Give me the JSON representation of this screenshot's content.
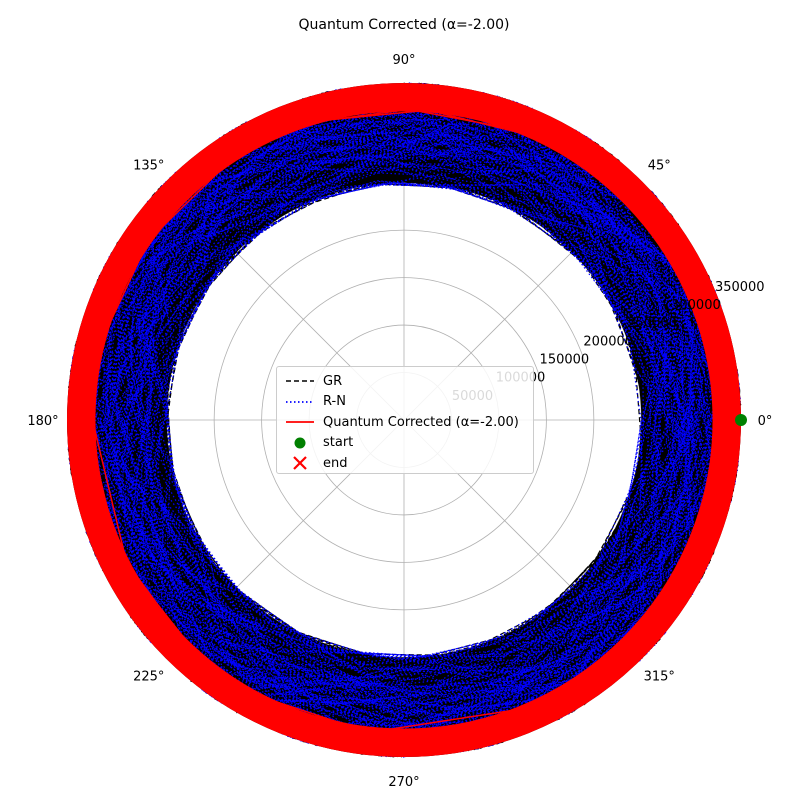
{
  "chart_data": {
    "type": "polar",
    "title": "Quantum Corrected (α=-2.00)",
    "angle_ticks": [
      "0°",
      "45°",
      "90°",
      "135°",
      "180°",
      "225°",
      "270°",
      "315°"
    ],
    "angle_tick_values": [
      0,
      45,
      90,
      135,
      180,
      225,
      270,
      315
    ],
    "radial_ticks": [
      "50000",
      "100000",
      "150000",
      "200000",
      "250000",
      "300000",
      "350000"
    ],
    "radial_tick_values": [
      50000,
      100000,
      150000,
      200000,
      250000,
      300000,
      350000
    ],
    "radial_tick_label_angle_deg": 22.5,
    "rlim": [
      0,
      355000
    ],
    "grid": true,
    "series": [
      {
        "name": "GR",
        "style": "dashed",
        "color": "#000000",
        "r_range": [
          250000,
          355000
        ],
        "theta_range_deg": [
          0,
          360
        ]
      },
      {
        "name": "R-N",
        "style": "dotted",
        "color": "#0000ff",
        "r_range": [
          250000,
          355000
        ],
        "theta_range_deg": [
          0,
          360
        ]
      },
      {
        "name": "Quantum Corrected (α=-2.00)",
        "style": "solid",
        "color": "#ff0000",
        "r_range": [
          325000,
          355000
        ],
        "theta_range_deg": [
          0,
          360
        ]
      }
    ],
    "markers": [
      {
        "name": "start",
        "shape": "circle",
        "color": "#008000",
        "theta_deg": 0,
        "r": 355000
      },
      {
        "name": "end",
        "shape": "x",
        "color": "#ff0000",
        "theta_deg": 151,
        "r": 342000
      }
    ],
    "legend": {
      "position": "center",
      "entries": [
        {
          "label": "GR",
          "kind": "line",
          "style": "dashed",
          "color": "#000000"
        },
        {
          "label": "R-N",
          "kind": "line",
          "style": "dotted",
          "color": "#0000ff"
        },
        {
          "label": "Quantum Corrected (α=-2.00)",
          "kind": "line",
          "style": "solid",
          "color": "#ff0000"
        },
        {
          "label": "start",
          "kind": "marker",
          "shape": "circle",
          "color": "#008000"
        },
        {
          "label": "end",
          "kind": "marker",
          "shape": "x",
          "color": "#ff0000"
        }
      ]
    }
  }
}
